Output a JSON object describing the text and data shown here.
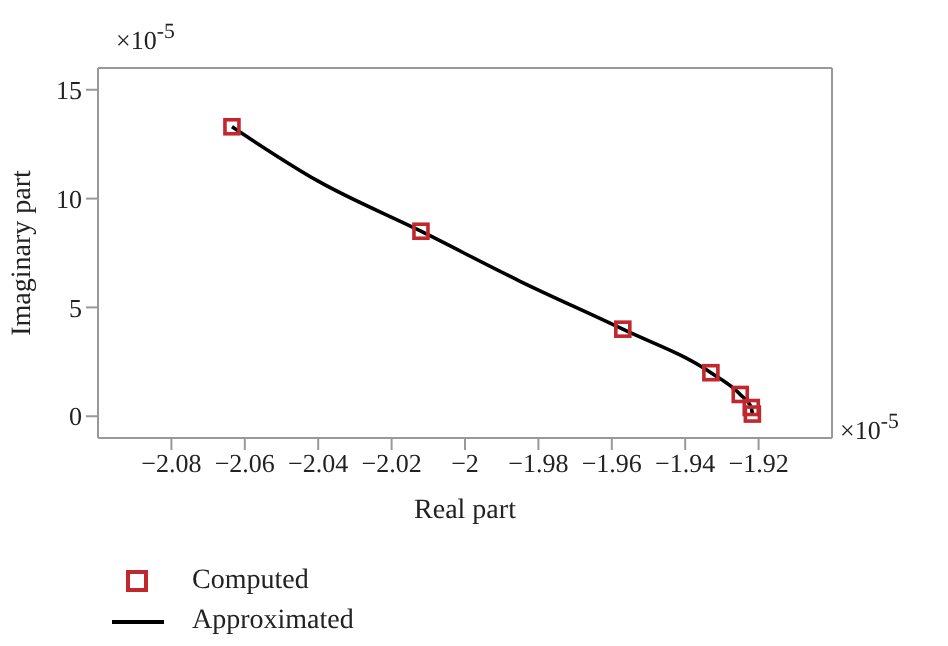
{
  "chart_data": {
    "type": "scatter",
    "xlabel": "Real part",
    "ylabel": "Imaginary part",
    "annotations": [
      "×10$^{-5}$",
      "×10$^{-5}$"
    ],
    "xlim": [
      -2.1,
      -1.9
    ],
    "xticks": [
      -2.08,
      -2.06,
      -2.04,
      -2.02,
      -2,
      -1.98,
      -1.96,
      -1.94,
      -1.92
    ],
    "ylim": [
      -1,
      16
    ],
    "yticks": [
      0,
      5,
      10,
      15
    ],
    "grid": false,
    "legend": "bottom left",
    "series": [
      {
        "name": "Computed",
        "type": "scatter",
        "marker": "square",
        "color": "#c0282d",
        "x": [
          -2.0635,
          -2.012,
          -1.957,
          -1.933,
          -1.925,
          -1.922,
          -1.9217
        ],
        "values": [
          13.3,
          8.5,
          4.0,
          2.0,
          1.0,
          0.4,
          0.1
        ]
      },
      {
        "name": "Approximated",
        "type": "line",
        "marker": "none",
        "line_style": "solid",
        "color": "#000000",
        "x": [
          -2.0635,
          -2.04,
          -2.012,
          -1.985,
          -1.957,
          -1.933,
          -1.925,
          -1.922,
          -1.9217
        ],
        "values": [
          13.3,
          10.8,
          8.5,
          6.2,
          4.0,
          2.0,
          1.0,
          0.4,
          0.1
        ]
      }
    ]
  }
}
